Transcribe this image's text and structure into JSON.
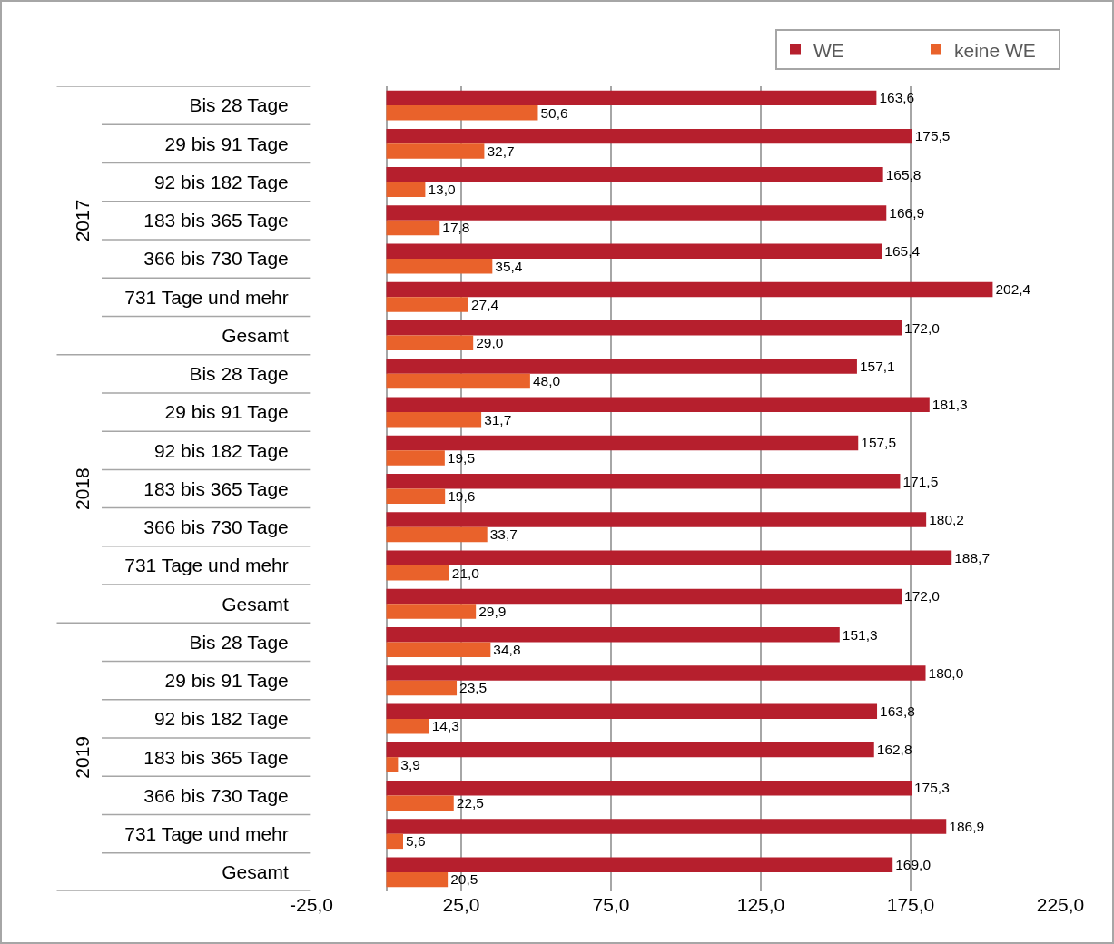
{
  "chart_data": {
    "type": "bar",
    "orientation": "horizontal",
    "categories": [
      "Bis 28 Tage",
      "29 bis 91 Tage",
      "92 bis 182 Tage",
      "183 bis 365 Tage",
      "366 bis 730 Tage",
      "731 Tage und mehr",
      "Gesamt",
      "Bis 28 Tage",
      "29 bis 91 Tage",
      "92 bis 182 Tage",
      "183 bis 365 Tage",
      "366 bis 730 Tage",
      "731 Tage und mehr",
      "Gesamt",
      "Bis 28 Tage",
      "29 bis 91 Tage",
      "92 bis 182 Tage",
      "183 bis 365 Tage",
      "366 bis 730 Tage",
      "731 Tage und mehr",
      "Gesamt"
    ],
    "series": [
      {
        "name": "WE",
        "color": "#b61f2d",
        "values": [
          163.6,
          175.5,
          165.8,
          166.9,
          165.4,
          202.4,
          172.0,
          157.1,
          181.3,
          157.5,
          171.5,
          180.2,
          188.7,
          172.0,
          151.3,
          180.0,
          163.8,
          162.8,
          175.3,
          186.9,
          169.0
        ],
        "value_labels": [
          "163,6",
          "175,5",
          "165,8",
          "166,9",
          "165,4",
          "202,4",
          "172,0",
          "157,1",
          "181,3",
          "157,5",
          "171,5",
          "180,2",
          "188,7",
          "172,0",
          "151,3",
          "180,0",
          "163,8",
          "162,8",
          "175,3",
          "186,9",
          "169,0"
        ]
      },
      {
        "name": "keine WE",
        "color": "#e9622b",
        "values": [
          50.6,
          32.7,
          13.0,
          17.8,
          35.4,
          27.4,
          29.0,
          48.0,
          31.7,
          19.5,
          19.6,
          33.7,
          21.0,
          29.9,
          34.8,
          23.5,
          14.3,
          3.9,
          22.5,
          5.6,
          20.5
        ],
        "value_labels": [
          "50,6",
          "32,7",
          "13,0",
          "17,8",
          "35,4",
          "27,4",
          "29,0",
          "48,0",
          "31,7",
          "19,5",
          "19,6",
          "33,7",
          "21,0",
          "29,9",
          "34,8",
          "23,5",
          "14,3",
          "3,9",
          "22,5",
          "5,6",
          "20,5"
        ]
      }
    ],
    "xlim": [
      -25,
      225
    ],
    "xticks": [
      {
        "value": -25,
        "label": "-25,0"
      },
      {
        "value": 25,
        "label": "25,0"
      },
      {
        "value": 75,
        "label": "75,0"
      },
      {
        "value": 125,
        "label": "125,0"
      },
      {
        "value": 175,
        "label": "175,0"
      },
      {
        "value": 225,
        "label": "225,0"
      }
    ],
    "grid": "x",
    "legend": "top right",
    "annotations": [
      "2017",
      "2018",
      "2019"
    ]
  }
}
